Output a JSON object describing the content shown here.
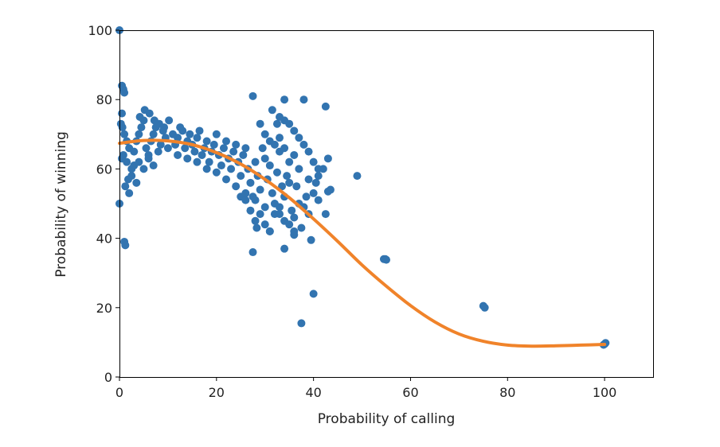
{
  "chart_data": {
    "type": "scatter",
    "title": "",
    "xlabel": "Probability of calling",
    "ylabel": "Probability of winning",
    "xlim": [
      0,
      110
    ],
    "ylim": [
      0,
      100
    ],
    "xticks": [
      0,
      20,
      40,
      60,
      80,
      100
    ],
    "yticks": [
      0,
      20,
      40,
      60,
      80,
      100
    ],
    "grid": false,
    "colors": {
      "scatter": "#3274b0",
      "fit": "#f0832a"
    },
    "series": [
      {
        "kind": "scatter",
        "points": [
          [
            0,
            100
          ],
          [
            0,
            50
          ],
          [
            0.5,
            84
          ],
          [
            0.8,
            83
          ],
          [
            1,
            82
          ],
          [
            1,
            39
          ],
          [
            1.2,
            38
          ],
          [
            0.5,
            76
          ],
          [
            0.3,
            73
          ],
          [
            0.6,
            72
          ],
          [
            1,
            70
          ],
          [
            1.5,
            68
          ],
          [
            2,
            66
          ],
          [
            0.8,
            64
          ],
          [
            1.5,
            62
          ],
          [
            2.5,
            60
          ],
          [
            1.8,
            57
          ],
          [
            1.2,
            55
          ],
          [
            2,
            53
          ],
          [
            0.5,
            63
          ],
          [
            3,
            65
          ],
          [
            3.5,
            68
          ],
          [
            4,
            70
          ],
          [
            4.5,
            72
          ],
          [
            5,
            74
          ],
          [
            5.5,
            66
          ],
          [
            6,
            64
          ],
          [
            6.5,
            68
          ],
          [
            7,
            70
          ],
          [
            7.5,
            72
          ],
          [
            8,
            65
          ],
          [
            8.5,
            67
          ],
          [
            9,
            71
          ],
          [
            9.5,
            69
          ],
          [
            10,
            66
          ],
          [
            3,
            61
          ],
          [
            4,
            62
          ],
          [
            5,
            60
          ],
          [
            6,
            63
          ],
          [
            7,
            61
          ],
          [
            2.5,
            58
          ],
          [
            3.5,
            56
          ],
          [
            4.2,
            75
          ],
          [
            5.2,
            77
          ],
          [
            6.2,
            76
          ],
          [
            7.2,
            74
          ],
          [
            8.2,
            73
          ],
          [
            9.2,
            72
          ],
          [
            10.2,
            74
          ],
          [
            11,
            70
          ],
          [
            11.5,
            67
          ],
          [
            12,
            69
          ],
          [
            12.5,
            72
          ],
          [
            13,
            71
          ],
          [
            13.5,
            66
          ],
          [
            14,
            68
          ],
          [
            14.5,
            70
          ],
          [
            15,
            67
          ],
          [
            15.5,
            65
          ],
          [
            16,
            69
          ],
          [
            16.5,
            71
          ],
          [
            17,
            64
          ],
          [
            17.5,
            66
          ],
          [
            18,
            68
          ],
          [
            18.5,
            62
          ],
          [
            19,
            65
          ],
          [
            19.5,
            67
          ],
          [
            20,
            70
          ],
          [
            20.5,
            64
          ],
          [
            21,
            61
          ],
          [
            21.5,
            66
          ],
          [
            22,
            68
          ],
          [
            22.5,
            63
          ],
          [
            23,
            60
          ],
          [
            23.5,
            65
          ],
          [
            24,
            67
          ],
          [
            24.5,
            62
          ],
          [
            25,
            58
          ],
          [
            25.5,
            64
          ],
          [
            26,
            66
          ],
          [
            26.5,
            60
          ],
          [
            27,
            56
          ],
          [
            27.5,
            52
          ],
          [
            28,
            62
          ],
          [
            28.5,
            58
          ],
          [
            29,
            54
          ],
          [
            29.5,
            66
          ],
          [
            30,
            63
          ],
          [
            30.5,
            57
          ],
          [
            31,
            61
          ],
          [
            31.5,
            53
          ],
          [
            32,
            50
          ],
          [
            32.5,
            59
          ],
          [
            33,
            65
          ],
          [
            33.5,
            55
          ],
          [
            34,
            52
          ],
          [
            34.5,
            58
          ],
          [
            35,
            62
          ],
          [
            35.5,
            48
          ],
          [
            36,
            46
          ],
          [
            12,
            64
          ],
          [
            14,
            63
          ],
          [
            16,
            62
          ],
          [
            18,
            60
          ],
          [
            20,
            59
          ],
          [
            22,
            57
          ],
          [
            24,
            55
          ],
          [
            26,
            53
          ],
          [
            28,
            51
          ],
          [
            30,
            49
          ],
          [
            25,
            52
          ],
          [
            26,
            51
          ],
          [
            27,
            48
          ],
          [
            28,
            45
          ],
          [
            28.3,
            43
          ],
          [
            29,
            47
          ],
          [
            30,
            44
          ],
          [
            31,
            42
          ],
          [
            32,
            47
          ],
          [
            33,
            49
          ],
          [
            34,
            45
          ],
          [
            35,
            44
          ],
          [
            36,
            42
          ],
          [
            37,
            50
          ],
          [
            38,
            49
          ],
          [
            39,
            47
          ],
          [
            40,
            53
          ],
          [
            41,
            51
          ],
          [
            42,
            60
          ],
          [
            43,
            63
          ],
          [
            43.5,
            54
          ],
          [
            42.5,
            47
          ],
          [
            41,
            58
          ],
          [
            39,
            65
          ],
          [
            38,
            67
          ],
          [
            37,
            69
          ],
          [
            36,
            71
          ],
          [
            35,
            73
          ],
          [
            34,
            74
          ],
          [
            33,
            75
          ],
          [
            31.5,
            77
          ],
          [
            32.5,
            73
          ],
          [
            34,
            80
          ],
          [
            38,
            80
          ],
          [
            42.5,
            78
          ],
          [
            27.5,
            81
          ],
          [
            29,
            73
          ],
          [
            30,
            70
          ],
          [
            31,
            68
          ],
          [
            32,
            67
          ],
          [
            33,
            69
          ],
          [
            34,
            66
          ],
          [
            36,
            64
          ],
          [
            37,
            60
          ],
          [
            39,
            57
          ],
          [
            40,
            62
          ],
          [
            36.5,
            55
          ],
          [
            35,
            56
          ],
          [
            40.5,
            56
          ],
          [
            41,
            60
          ],
          [
            49,
            58
          ],
          [
            54.5,
            34
          ],
          [
            54.8,
            34
          ],
          [
            55,
            33.8
          ],
          [
            75,
            20.5
          ],
          [
            75.3,
            20
          ],
          [
            100,
            9.5
          ],
          [
            100.2,
            9.8
          ],
          [
            99.8,
            9.3
          ],
          [
            40,
            24
          ],
          [
            37.5,
            15.5
          ],
          [
            34,
            37
          ],
          [
            36,
            41
          ],
          [
            37.5,
            43
          ],
          [
            39.5,
            39.5
          ],
          [
            27.5,
            36
          ],
          [
            31,
            42
          ],
          [
            33,
            47
          ],
          [
            38.5,
            52
          ],
          [
            43,
            53.5
          ]
        ]
      },
      {
        "kind": "line",
        "x": [
          0,
          5,
          10,
          15,
          20,
          25,
          30,
          35,
          40,
          45,
          50,
          55,
          60,
          65,
          70,
          75,
          80,
          85,
          90,
          95,
          100
        ],
        "y": [
          67.4,
          68.2,
          68.1,
          67,
          64.7,
          61.4,
          57,
          51.7,
          45.6,
          39.1,
          32.3,
          26.2,
          20.6,
          15.9,
          12.4,
          10.3,
          9.2,
          8.9,
          9,
          9.2,
          9.4
        ]
      }
    ]
  }
}
